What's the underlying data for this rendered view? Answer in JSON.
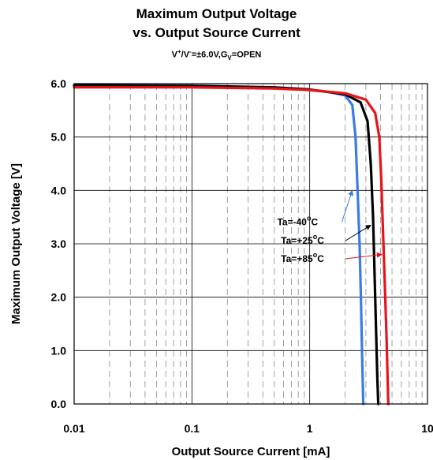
{
  "chart_data": {
    "type": "line",
    "title_line1": "Maximum Output Voltage",
    "title_line2": "vs. Output Source Current",
    "subtitle": {
      "a": "V",
      "a_sup": "+",
      "sep": "/V",
      "sep_sup": "-",
      "rest": "=±6.0V,G",
      "rest_sub": "V",
      "tail": "=OPEN"
    },
    "xlabel": "Output Source Current [mA]",
    "ylabel": "Maximum Output Voltage [V]",
    "x_scale": "log",
    "xlim": [
      0.01,
      10
    ],
    "ylim": [
      0,
      6
    ],
    "x_ticks": [
      {
        "value": 0.01,
        "label": "0.01"
      },
      {
        "value": 0.1,
        "label": "0.1"
      },
      {
        "value": 1,
        "label": "1"
      },
      {
        "value": 10,
        "label": "10"
      }
    ],
    "y_ticks": [
      {
        "value": 0,
        "label": "0.0"
      },
      {
        "value": 1,
        "label": "1.0"
      },
      {
        "value": 2,
        "label": "2.0"
      },
      {
        "value": 3,
        "label": "3.0"
      },
      {
        "value": 4,
        "label": "4.0"
      },
      {
        "value": 5,
        "label": "5.0"
      },
      {
        "value": 6,
        "label": "6.0"
      }
    ],
    "grid": true,
    "series": [
      {
        "name": "Ta=-40°C",
        "color": "#3a7be8",
        "points": [
          [
            0.01,
            5.96
          ],
          [
            0.1,
            5.95
          ],
          [
            0.5,
            5.92
          ],
          [
            1,
            5.88
          ],
          [
            1.5,
            5.84
          ],
          [
            2,
            5.78
          ],
          [
            2.3,
            5.6
          ],
          [
            2.45,
            5.0
          ],
          [
            2.55,
            4.0
          ],
          [
            2.65,
            3.0
          ],
          [
            2.72,
            2.0
          ],
          [
            2.78,
            1.0
          ],
          [
            2.85,
            0.0
          ]
        ]
      },
      {
        "name": "Ta=+25°C",
        "color": "#000000",
        "points": [
          [
            0.01,
            5.97
          ],
          [
            0.1,
            5.96
          ],
          [
            0.5,
            5.93
          ],
          [
            1,
            5.89
          ],
          [
            2,
            5.8
          ],
          [
            2.7,
            5.65
          ],
          [
            3.1,
            5.3
          ],
          [
            3.3,
            4.5
          ],
          [
            3.45,
            3.5
          ],
          [
            3.55,
            2.5
          ],
          [
            3.65,
            1.5
          ],
          [
            3.75,
            0.5
          ],
          [
            3.82,
            0.0
          ]
        ]
      },
      {
        "name": "Ta=+85°C",
        "color": "#e8141b",
        "points": [
          [
            0.01,
            5.93
          ],
          [
            0.1,
            5.93
          ],
          [
            0.5,
            5.91
          ],
          [
            1,
            5.88
          ],
          [
            2,
            5.82
          ],
          [
            3,
            5.7
          ],
          [
            3.6,
            5.45
          ],
          [
            3.9,
            5.0
          ],
          [
            4.05,
            4.2
          ],
          [
            4.2,
            3.2
          ],
          [
            4.35,
            2.2
          ],
          [
            4.5,
            1.2
          ],
          [
            4.6,
            0.4
          ],
          [
            4.65,
            0.0
          ]
        ]
      }
    ],
    "annotations": [
      {
        "label": "Ta=-40",
        "deg": "o",
        "unit": "C",
        "color": "#3a7be8",
        "text_x": 0.53,
        "text_y": 3.35,
        "arrow_to_x": 2.3,
        "arrow_to_y": 4.0
      },
      {
        "label": "Ta=+25",
        "deg": "o",
        "unit": "C",
        "color": "#000000",
        "text_x": 0.57,
        "text_y": 3.0,
        "arrow_to_x": 3.3,
        "arrow_to_y": 3.35
      },
      {
        "label": "Ta=+85",
        "deg": "o",
        "unit": "C",
        "color": "#e8141b",
        "text_x": 0.57,
        "text_y": 2.66,
        "arrow_to_x": 4.1,
        "arrow_to_y": 2.8
      }
    ]
  }
}
